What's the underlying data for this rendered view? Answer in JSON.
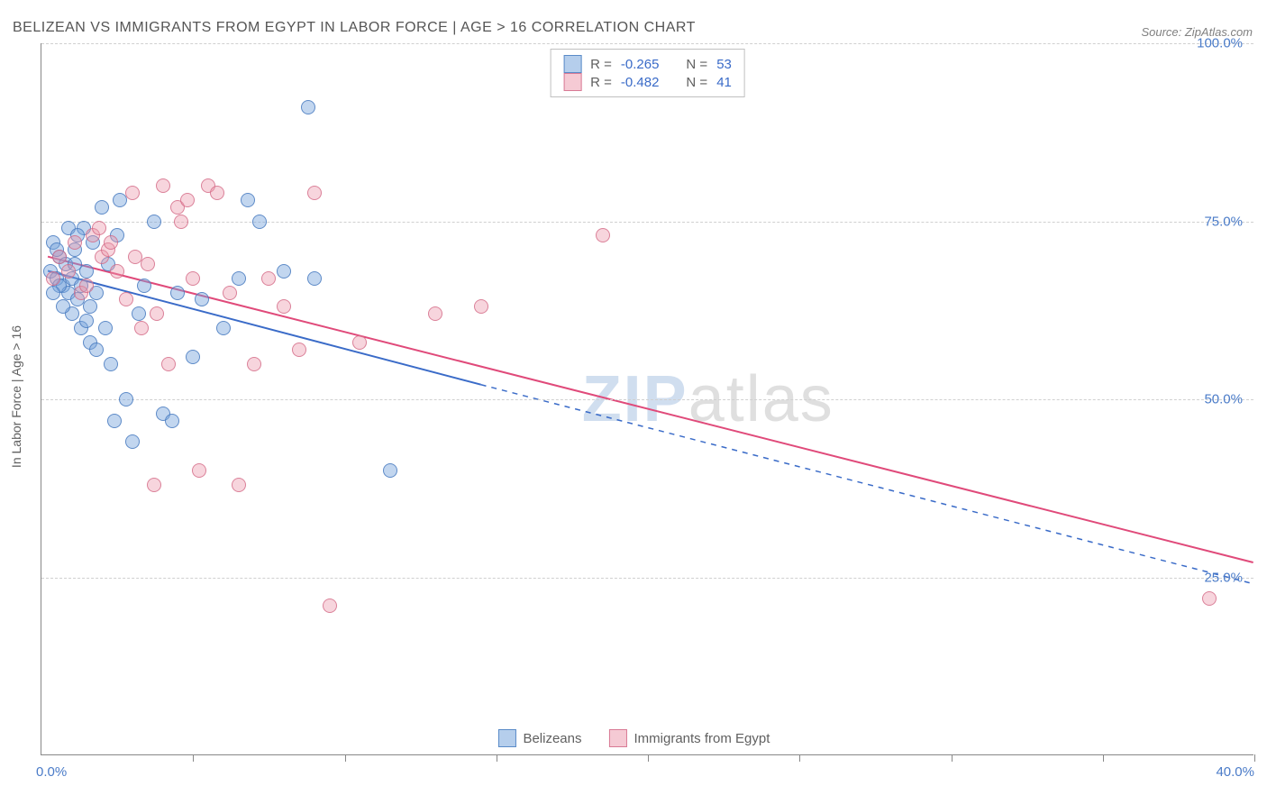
{
  "title": "BELIZEAN VS IMMIGRANTS FROM EGYPT IN LABOR FORCE | AGE > 16 CORRELATION CHART",
  "source": "Source: ZipAtlas.com",
  "y_axis_label": "In Labor Force | Age > 16",
  "watermark_a": "ZIP",
  "watermark_b": "atlas",
  "chart": {
    "type": "scatter",
    "xlim": [
      0,
      40
    ],
    "ylim": [
      0,
      100
    ],
    "x_ticks": [
      0,
      5,
      10,
      15,
      20,
      25,
      30,
      35,
      40
    ],
    "x_label_min": "0.0%",
    "x_label_max": "40.0%",
    "y_gridlines": [
      25,
      50,
      75,
      100
    ],
    "y_tick_labels": [
      "25.0%",
      "50.0%",
      "75.0%",
      "100.0%"
    ],
    "background_color": "#ffffff",
    "grid_color": "#d0d0d0",
    "axis_color": "#888888",
    "marker_radius": 8,
    "series": [
      {
        "name": "Belizeans",
        "color_fill": "rgba(120,165,220,0.45)",
        "color_stroke": "rgba(70,120,190,0.8)",
        "class": "blue",
        "R": "-0.265",
        "N": "53",
        "trend": {
          "x1": 0.2,
          "y1": 68,
          "x2": 14.5,
          "y2": 52,
          "solid_until_x": 14.5,
          "dash_to_x": 40,
          "dash_to_y": 24,
          "stroke": "#3a6bc8",
          "width": 2
        },
        "points": [
          [
            0.3,
            68
          ],
          [
            0.5,
            67
          ],
          [
            0.6,
            70
          ],
          [
            0.7,
            66
          ],
          [
            0.8,
            69
          ],
          [
            0.9,
            65
          ],
          [
            1.0,
            67
          ],
          [
            1.1,
            71
          ],
          [
            1.2,
            64
          ],
          [
            1.3,
            66
          ],
          [
            1.4,
            74
          ],
          [
            1.5,
            68
          ],
          [
            1.6,
            63
          ],
          [
            1.7,
            72
          ],
          [
            1.8,
            65
          ],
          [
            2.0,
            77
          ],
          [
            2.1,
            60
          ],
          [
            2.3,
            55
          ],
          [
            2.5,
            73
          ],
          [
            2.6,
            78
          ],
          [
            2.8,
            50
          ],
          [
            3.0,
            44
          ],
          [
            3.2,
            62
          ],
          [
            3.4,
            66
          ],
          [
            3.7,
            75
          ],
          [
            4.0,
            48
          ],
          [
            4.3,
            47
          ],
          [
            4.5,
            65
          ],
          [
            5.0,
            56
          ],
          [
            5.3,
            64
          ],
          [
            6.0,
            60
          ],
          [
            6.5,
            67
          ],
          [
            6.8,
            78
          ],
          [
            7.2,
            75
          ],
          [
            8.0,
            68
          ],
          [
            8.8,
            91
          ],
          [
            9.0,
            67
          ],
          [
            11.5,
            40
          ],
          [
            0.4,
            72
          ],
          [
            1.0,
            62
          ],
          [
            0.7,
            63
          ],
          [
            1.1,
            69
          ],
          [
            1.6,
            58
          ],
          [
            0.5,
            71
          ],
          [
            1.3,
            60
          ],
          [
            2.2,
            69
          ],
          [
            0.9,
            74
          ],
          [
            1.5,
            61
          ],
          [
            0.6,
            66
          ],
          [
            1.8,
            57
          ],
          [
            0.4,
            65
          ],
          [
            1.2,
            73
          ],
          [
            2.4,
            47
          ]
        ]
      },
      {
        "name": "Immigrants from Egypt",
        "color_fill": "rgba(235,150,170,0.4)",
        "color_stroke": "rgba(210,100,130,0.75)",
        "class": "pink",
        "R": "-0.482",
        "N": "41",
        "trend": {
          "x1": 0.2,
          "y1": 70,
          "x2": 40,
          "y2": 27,
          "stroke": "#e04a7a",
          "width": 2
        },
        "points": [
          [
            0.4,
            67
          ],
          [
            0.6,
            70
          ],
          [
            0.9,
            68
          ],
          [
            1.1,
            72
          ],
          [
            1.3,
            65
          ],
          [
            1.5,
            66
          ],
          [
            1.7,
            73
          ],
          [
            2.0,
            70
          ],
          [
            2.2,
            71
          ],
          [
            2.5,
            68
          ],
          [
            2.8,
            64
          ],
          [
            3.0,
            79
          ],
          [
            3.3,
            60
          ],
          [
            3.5,
            69
          ],
          [
            3.8,
            62
          ],
          [
            4.0,
            80
          ],
          [
            4.2,
            55
          ],
          [
            4.5,
            77
          ],
          [
            4.8,
            78
          ],
          [
            5.0,
            67
          ],
          [
            5.5,
            80
          ],
          [
            5.8,
            79
          ],
          [
            6.2,
            65
          ],
          [
            6.5,
            38
          ],
          [
            7.0,
            55
          ],
          [
            7.5,
            67
          ],
          [
            8.0,
            63
          ],
          [
            8.5,
            57
          ],
          [
            9.0,
            79
          ],
          [
            9.5,
            21
          ],
          [
            10.5,
            58
          ],
          [
            13.0,
            62
          ],
          [
            14.5,
            63
          ],
          [
            18.5,
            73
          ],
          [
            38.5,
            22
          ],
          [
            3.7,
            38
          ],
          [
            5.2,
            40
          ],
          [
            2.3,
            72
          ],
          [
            1.9,
            74
          ],
          [
            4.6,
            75
          ],
          [
            3.1,
            70
          ]
        ]
      }
    ]
  },
  "stat_box": {
    "label_R": "R = ",
    "label_N": "N = "
  },
  "legend_bottom": {
    "a": "Belizeans",
    "b": "Immigrants from Egypt"
  }
}
